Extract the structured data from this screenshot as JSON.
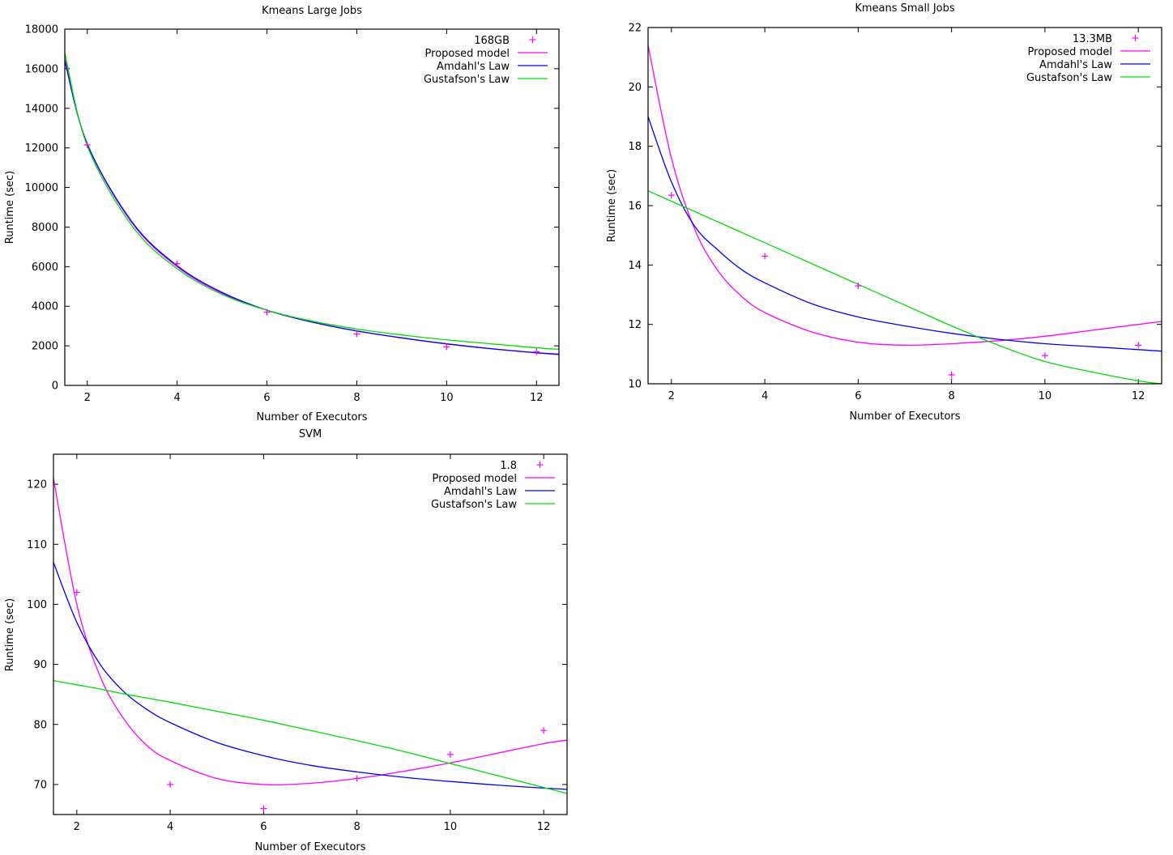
{
  "chart_data": [
    {
      "type": "line",
      "title": "Kmeans Large Jobs",
      "xlabel": "Number of Executors",
      "ylabel": "Runtime (sec)",
      "xlim": [
        1.5,
        12.5
      ],
      "ylim": [
        0,
        18000
      ],
      "xticks": [
        2,
        4,
        6,
        8,
        10,
        12
      ],
      "yticks": [
        0,
        2000,
        4000,
        6000,
        8000,
        10000,
        12000,
        14000,
        16000,
        18000
      ],
      "legend_position": "top-right",
      "grid": false,
      "x": [
        1.5,
        2,
        3,
        4,
        5,
        6,
        7,
        8,
        9,
        10,
        11,
        12,
        12.5
      ],
      "points": {
        "name": "168GB",
        "color": "#ff00ff",
        "x": [
          2,
          4,
          6,
          8,
          10,
          12
        ],
        "y": [
          12150,
          6150,
          3700,
          2600,
          1950,
          1700
        ]
      },
      "series": [
        {
          "name": "Proposed model",
          "color": "#ff00ff",
          "values": [
            16500,
            12200,
            8200,
            6000,
            4650,
            3800,
            3200,
            2750,
            2400,
            2100,
            1850,
            1650,
            1550
          ]
        },
        {
          "name": "Amdahl's Law",
          "color": "#0000ff",
          "values": [
            16400,
            12200,
            8250,
            6050,
            4700,
            3800,
            3200,
            2750,
            2400,
            2100,
            1850,
            1650,
            1580
          ]
        },
        {
          "name": "Gustafson's Law",
          "color": "#00dd00",
          "values": [
            16800,
            12100,
            8050,
            5900,
            4600,
            3800,
            3250,
            2850,
            2550,
            2300,
            2100,
            1900,
            1820
          ]
        }
      ]
    },
    {
      "type": "line",
      "title": "Kmeans Small Jobs",
      "xlabel": "Number of Executors",
      "ylabel": "Runtime (sec)",
      "xlim": [
        1.5,
        12.5
      ],
      "ylim": [
        10,
        22
      ],
      "xticks": [
        2,
        4,
        6,
        8,
        10,
        12
      ],
      "yticks": [
        10,
        12,
        14,
        16,
        18,
        20,
        22
      ],
      "legend_position": "top-right",
      "grid": false,
      "x": [
        1.5,
        2,
        2.5,
        3,
        3.5,
        4,
        5,
        6,
        7,
        8,
        9,
        10,
        11,
        12,
        12.5
      ],
      "points": {
        "name": "13.3MB",
        "color": "#ff00ff",
        "x": [
          2,
          4,
          6,
          8,
          10,
          12
        ],
        "y": [
          16.35,
          14.3,
          13.3,
          10.3,
          10.95,
          11.3
        ]
      },
      "series": [
        {
          "name": "Proposed model",
          "color": "#ff00ff",
          "values": [
            21.4,
            17.6,
            15.2,
            13.8,
            12.95,
            12.4,
            11.75,
            11.4,
            11.3,
            11.35,
            11.45,
            11.6,
            11.8,
            12.0,
            12.1
          ]
        },
        {
          "name": "Amdahl's Law",
          "color": "#0000ff",
          "values": [
            19.0,
            16.8,
            15.3,
            14.5,
            13.85,
            13.4,
            12.7,
            12.25,
            11.95,
            11.7,
            11.5,
            11.35,
            11.25,
            11.15,
            11.1
          ]
        },
        {
          "name": "Gustafson's Law",
          "color": "#00dd00",
          "values": [
            16.5,
            16.15,
            15.8,
            15.45,
            15.1,
            14.75,
            14.05,
            13.35,
            12.65,
            11.95,
            11.3,
            10.75,
            10.4,
            10.1,
            10.0
          ]
        }
      ]
    },
    {
      "type": "line",
      "title": "SVM",
      "xlabel": "Number of Executors",
      "ylabel": "Runtime (sec)",
      "xlim": [
        1.5,
        12.5
      ],
      "ylim": [
        65,
        125
      ],
      "xticks": [
        2,
        4,
        6,
        8,
        10,
        12
      ],
      "yticks": [
        70,
        80,
        90,
        100,
        110,
        120
      ],
      "legend_position": "top-right",
      "grid": false,
      "x": [
        1.5,
        2,
        2.5,
        3,
        3.5,
        4,
        5,
        6,
        7,
        8,
        9,
        10,
        11,
        12,
        12.5
      ],
      "points": {
        "name": "1.8",
        "color": "#ff00ff",
        "x": [
          2,
          4,
          6,
          8,
          10,
          12
        ],
        "y": [
          102,
          70,
          66,
          71,
          75,
          79
        ]
      },
      "series": [
        {
          "name": "Proposed model",
          "color": "#ff00ff",
          "values": [
            121,
            100,
            88,
            81,
            76.5,
            74,
            71,
            70,
            70.2,
            71,
            72.2,
            73.6,
            75.2,
            76.8,
            77.4
          ]
        },
        {
          "name": "Amdahl's Law",
          "color": "#0000ff",
          "values": [
            107,
            97,
            90,
            85.5,
            82.5,
            80.3,
            77,
            74.8,
            73.2,
            72.1,
            71.2,
            70.5,
            69.9,
            69.4,
            69.2
          ]
        },
        {
          "name": "Gustafson's Law",
          "color": "#00dd00",
          "values": [
            87.3,
            86.6,
            85.9,
            85.1,
            84.4,
            83.7,
            82.2,
            80.7,
            79.0,
            77.3,
            75.5,
            73.5,
            71.5,
            69.5,
            68.5
          ]
        }
      ]
    }
  ]
}
